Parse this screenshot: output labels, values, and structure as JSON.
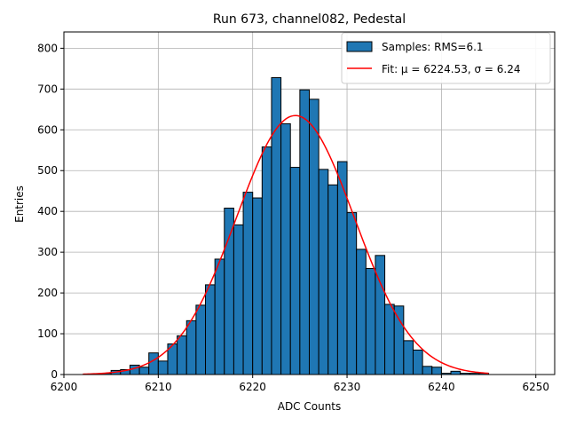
{
  "chart_data": {
    "type": "bar",
    "title": "Run 673, channel082, Pedestal",
    "xlabel": "ADC Counts",
    "ylabel": "Entries",
    "xlim": [
      6200,
      6252
    ],
    "ylim": [
      0,
      840
    ],
    "xticks": [
      6200,
      6210,
      6220,
      6230,
      6240,
      6250
    ],
    "yticks": [
      0,
      100,
      200,
      300,
      400,
      500,
      600,
      700,
      800
    ],
    "grid": true,
    "legend_position": "top-right",
    "bar_color": "#1f77b4",
    "fit_color": "#ff0000",
    "histogram": {
      "name": "Samples: RMS=6.1",
      "bin_width": 1,
      "bin_left_edges": [
        6204,
        6205,
        6206,
        6207,
        6208,
        6209,
        6210,
        6211,
        6212,
        6213,
        6214,
        6215,
        6216,
        6217,
        6218,
        6219,
        6220,
        6221,
        6222,
        6223,
        6224,
        6225,
        6226,
        6227,
        6228,
        6229,
        6230,
        6231,
        6232,
        6233,
        6234,
        6235,
        6236,
        6237,
        6238,
        6239,
        6240,
        6241,
        6242,
        6243,
        6244
      ],
      "counts": [
        3,
        10,
        12,
        23,
        18,
        53,
        33,
        75,
        95,
        132,
        170,
        220,
        283,
        408,
        367,
        447,
        433,
        558,
        728,
        615,
        508,
        698,
        675,
        503,
        465,
        522,
        397,
        307,
        260,
        292,
        172,
        168,
        83,
        60,
        20,
        18,
        3,
        8,
        3,
        3,
        3
      ]
    },
    "fit": {
      "name": "Fit: μ = 6224.53, σ = 6.24",
      "mu": 6224.53,
      "sigma": 6.24,
      "amplitude": 635,
      "x_range": [
        6202,
        6245
      ]
    }
  }
}
